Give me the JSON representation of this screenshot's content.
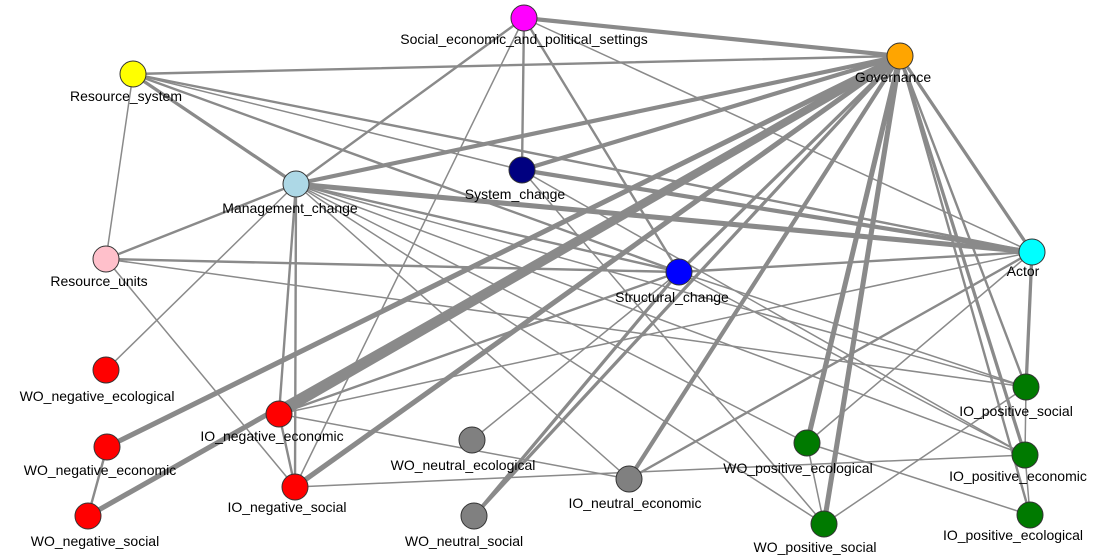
{
  "colors": {
    "edge": "#8a8a8a",
    "red": "#ff0000",
    "green": "#007a00",
    "gray": "#808080"
  },
  "nodes": [
    {
      "id": "social",
      "label": "Social_economic_and_political_settings",
      "color": "#ff00ff"
    },
    {
      "id": "governance",
      "label": "Governance",
      "color": "#ffa500"
    },
    {
      "id": "resource_system",
      "label": "Resource_system",
      "color": "#ffff00"
    },
    {
      "id": "system_change",
      "label": "System_change",
      "color": "#000080"
    },
    {
      "id": "management_change",
      "label": "Management_change",
      "color": "#add8e6"
    },
    {
      "id": "actor",
      "label": "Actor",
      "color": "#00ffff"
    },
    {
      "id": "resource_units",
      "label": "Resource_units",
      "color": "#ffc0cb"
    },
    {
      "id": "structural_change",
      "label": "Structural_change",
      "color": "#0000ff"
    },
    {
      "id": "wo_neg_eco",
      "label": "WO_negative_ecological",
      "color": "#ff0000"
    },
    {
      "id": "io_neg_econ",
      "label": "IO_negative_economic",
      "color": "#ff0000"
    },
    {
      "id": "wo_neg_econ",
      "label": "WO_negative_economic",
      "color": "#ff0000"
    },
    {
      "id": "wo_neutral_eco",
      "label": "WO_neutral_ecological",
      "color": "#808080",
      "stroke": "#ff0000"
    },
    {
      "id": "io_neg_soc",
      "label": "IO_negative_social",
      "color": "#ff0000"
    },
    {
      "id": "wo_neg_soc",
      "label": "WO_negative_social",
      "color": "#ff0000"
    },
    {
      "id": "wo_neutral_soc",
      "label": "WO_neutral_social",
      "color": "#808080"
    },
    {
      "id": "io_neutral_econ",
      "label": "IO_neutral_economic",
      "color": "#808080"
    },
    {
      "id": "wo_pos_eco",
      "label": "WO_positive_ecological",
      "color": "#007a00"
    },
    {
      "id": "wo_pos_soc",
      "label": "WO_positive_social",
      "color": "#007a00"
    },
    {
      "id": "io_pos_soc",
      "label": "IO_positive_social",
      "color": "#007a00"
    },
    {
      "id": "io_pos_econ",
      "label": "IO_positive_economic",
      "color": "#007a00"
    },
    {
      "id": "io_pos_eco",
      "label": "IO_positive_ecological",
      "color": "#007a00"
    }
  ],
  "edges": [
    {
      "from": "social",
      "to": "governance",
      "weight": 4
    },
    {
      "from": "social",
      "to": "management_change",
      "weight": 2
    },
    {
      "from": "social",
      "to": "system_change",
      "weight": 2
    },
    {
      "from": "social",
      "to": "structural_change",
      "weight": 2
    },
    {
      "from": "social",
      "to": "actor",
      "weight": 1
    },
    {
      "from": "social",
      "to": "io_neg_soc",
      "weight": 1
    },
    {
      "from": "resource_system",
      "to": "governance",
      "weight": 2
    },
    {
      "from": "resource_system",
      "to": "management_change",
      "weight": 3
    },
    {
      "from": "resource_system",
      "to": "structural_change",
      "weight": 2
    },
    {
      "from": "resource_system",
      "to": "actor",
      "weight": 2
    },
    {
      "from": "resource_system",
      "to": "system_change",
      "weight": 1
    },
    {
      "from": "resource_system",
      "to": "resource_units",
      "weight": 1
    },
    {
      "from": "management_change",
      "to": "governance",
      "weight": 4
    },
    {
      "from": "management_change",
      "to": "actor",
      "weight": 5
    },
    {
      "from": "management_change",
      "to": "resource_units",
      "weight": 2
    },
    {
      "from": "management_change",
      "to": "io_neg_econ",
      "weight": 2
    },
    {
      "from": "management_change",
      "to": "io_neg_soc",
      "weight": 2
    },
    {
      "from": "management_change",
      "to": "structural_change",
      "weight": 2
    },
    {
      "from": "management_change",
      "to": "io_pos_soc",
      "weight": 1
    },
    {
      "from": "management_change",
      "to": "io_pos_econ",
      "weight": 1
    },
    {
      "from": "management_change",
      "to": "io_neutral_econ",
      "weight": 1
    },
    {
      "from": "management_change",
      "to": "wo_pos_eco",
      "weight": 1
    },
    {
      "from": "system_change",
      "to": "governance",
      "weight": 4
    },
    {
      "from": "system_change",
      "to": "actor",
      "weight": 4
    },
    {
      "from": "system_change",
      "to": "io_pos_econ",
      "weight": 1
    },
    {
      "from": "system_change",
      "to": "wo_pos_soc",
      "weight": 1
    },
    {
      "from": "governance",
      "to": "actor",
      "weight": 3
    },
    {
      "from": "governance",
      "to": "structural_change",
      "weight": 3
    },
    {
      "from": "governance",
      "to": "io_neg_econ",
      "weight": 8
    },
    {
      "from": "governance",
      "to": "wo_neg_econ",
      "weight": 5
    },
    {
      "from": "governance",
      "to": "io_neg_soc",
      "weight": 5
    },
    {
      "from": "governance",
      "to": "wo_neg_soc",
      "weight": 5
    },
    {
      "from": "governance",
      "to": "io_neutral_econ",
      "weight": 4
    },
    {
      "from": "governance",
      "to": "wo_pos_eco",
      "weight": 5
    },
    {
      "from": "governance",
      "to": "wo_pos_soc",
      "weight": 5
    },
    {
      "from": "governance",
      "to": "io_pos_econ",
      "weight": 3
    },
    {
      "from": "governance",
      "to": "io_pos_soc",
      "weight": 2
    },
    {
      "from": "governance",
      "to": "io_pos_eco",
      "weight": 2
    },
    {
      "from": "governance",
      "to": "wo_neutral_soc",
      "weight": 3
    },
    {
      "from": "actor",
      "to": "structural_change",
      "weight": 2
    },
    {
      "from": "actor",
      "to": "io_pos_soc",
      "weight": 3
    },
    {
      "from": "actor",
      "to": "io_neutral_econ",
      "weight": 2
    },
    {
      "from": "actor",
      "to": "io_neg_econ",
      "weight": 1
    },
    {
      "from": "actor",
      "to": "wo_pos_eco",
      "weight": 1
    },
    {
      "from": "resource_units",
      "to": "structural_change",
      "weight": 2
    },
    {
      "from": "resource_units",
      "to": "io_neg_soc",
      "weight": 1
    },
    {
      "from": "resource_units",
      "to": "io_pos_soc",
      "weight": 1
    },
    {
      "from": "structural_change",
      "to": "wo_neutral_soc",
      "weight": 3
    },
    {
      "from": "structural_change",
      "to": "io_neg_econ",
      "weight": 2
    },
    {
      "from": "structural_change",
      "to": "wo_neutral_eco",
      "weight": 1
    },
    {
      "from": "structural_change",
      "to": "io_pos_soc",
      "weight": 1
    },
    {
      "from": "structural_change",
      "to": "io_pos_econ",
      "weight": 1
    },
    {
      "from": "wo_neg_eco",
      "to": "management_change",
      "weight": 1
    },
    {
      "from": "wo_neg_econ",
      "to": "wo_neg_soc",
      "weight": 2
    },
    {
      "from": "io_neg_econ",
      "to": "io_neg_soc",
      "weight": 2
    },
    {
      "from": "io_neg_econ",
      "to": "io_neutral_econ",
      "weight": 1
    },
    {
      "from": "io_neg_soc",
      "to": "io_pos_econ",
      "weight": 1
    },
    {
      "from": "wo_pos_eco",
      "to": "wo_pos_soc",
      "weight": 1
    },
    {
      "from": "io_pos_soc",
      "to": "io_pos_econ",
      "weight": 1
    },
    {
      "from": "io_pos_soc",
      "to": "wo_pos_soc",
      "weight": 1
    },
    {
      "from": "io_pos_econ",
      "to": "io_pos_eco",
      "weight": 1
    },
    {
      "from": "wo_pos_eco",
      "to": "io_pos_eco",
      "weight": 1
    },
    {
      "from": "management_change",
      "to": "wo_pos_soc",
      "weight": 1
    }
  ]
}
